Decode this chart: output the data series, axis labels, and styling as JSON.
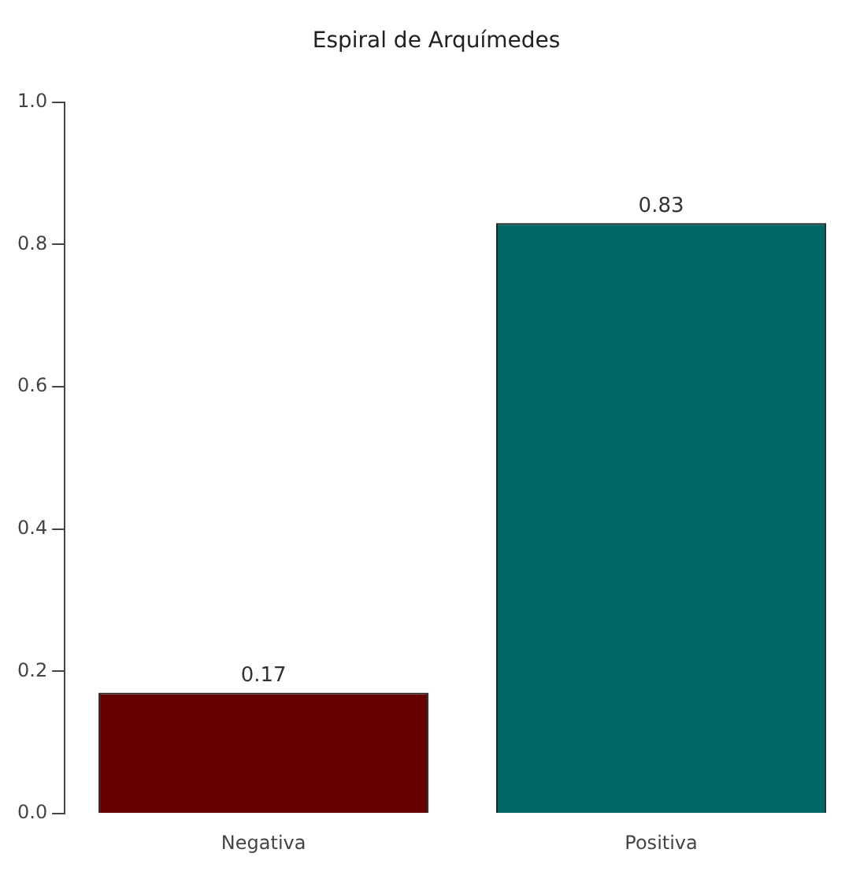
{
  "chart_data": {
    "type": "bar",
    "title": "Espiral de Arquímedes",
    "categories": [
      "Negativa",
      "Positiva"
    ],
    "values": [
      0.17,
      0.83
    ],
    "colors": [
      "#660000",
      "#006666"
    ],
    "ylim": [
      0,
      1
    ],
    "yticks": [
      {
        "value": 0,
        "label": "0.0"
      },
      0.2,
      0.4,
      0.6,
      0.8,
      {
        "value": 1,
        "label": "1.0"
      }
    ],
    "grid": false,
    "data_labels": true,
    "legend": false
  }
}
